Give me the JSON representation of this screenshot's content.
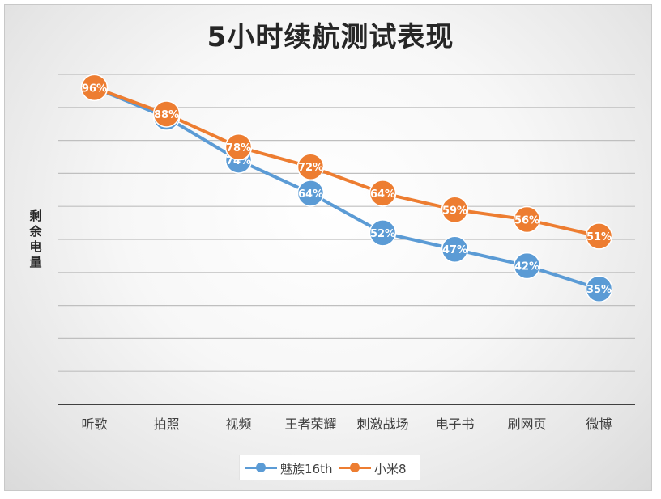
{
  "chart_data": {
    "type": "line",
    "title": "5小时续航测试表现",
    "ylabel": "剩余电量",
    "xlabel": "",
    "categories": [
      "听歌",
      "拍照",
      "视频",
      "王者荣耀",
      "刺激战场",
      "电子书",
      "刷网页",
      "微博"
    ],
    "ylim": [
      0,
      100
    ],
    "grid": true,
    "legend_position": "bottom",
    "series": [
      {
        "name": "魅族16th",
        "values": [
          96,
          87,
          74,
          64,
          52,
          47,
          42,
          35
        ],
        "labels": [
          "96%",
          "87%",
          "74%",
          "64%",
          "52%",
          "47%",
          "42%",
          "35%"
        ],
        "color": "#5b9bd5"
      },
      {
        "name": "小米8",
        "values": [
          96,
          88,
          78,
          72,
          64,
          59,
          56,
          51
        ],
        "labels": [
          "96%",
          "88%",
          "78%",
          "72%",
          "64%",
          "59%",
          "56%",
          "51%"
        ],
        "color": "#ed7d31"
      }
    ]
  }
}
